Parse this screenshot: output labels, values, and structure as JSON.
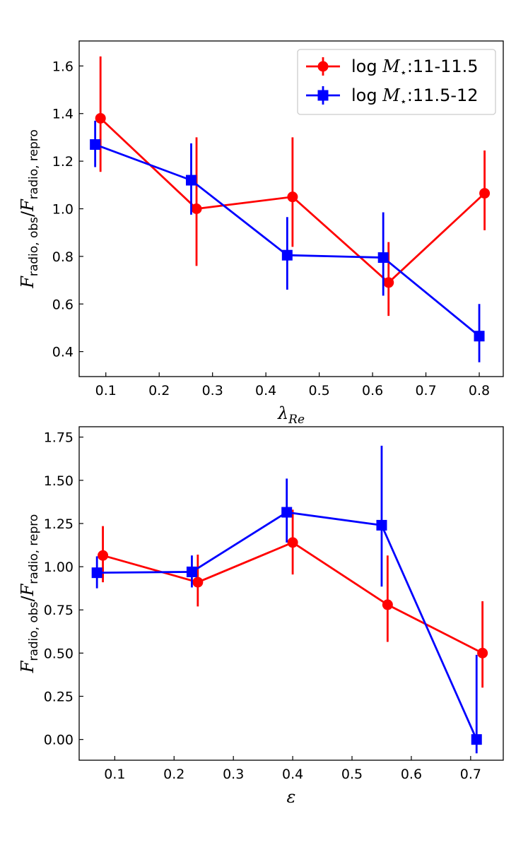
{
  "chart_data": [
    {
      "type": "line",
      "xlabel": "λ_Re",
      "ylabel": "F_radio,obs/F_radio,repro",
      "xlim": [
        0.05,
        0.845
      ],
      "ylim": [
        0.295,
        1.705
      ],
      "xticks": [
        "0.1",
        "0.2",
        "0.3",
        "0.4",
        "0.5",
        "0.6",
        "0.7",
        "0.8"
      ],
      "yticks": [
        "0.4",
        "0.6",
        "0.8",
        "1.0",
        "1.2",
        "1.4",
        "1.6"
      ],
      "grid": false,
      "legend": "top-right",
      "series": [
        {
          "name": "log M⋆:11-11.5",
          "color": "#ff0000",
          "marker": "circle",
          "x": [
            0.09,
            0.27,
            0.45,
            0.63,
            0.81
          ],
          "y": [
            1.38,
            1.0,
            1.05,
            0.69,
            1.065
          ],
          "yerr_low": [
            1.155,
            0.76,
            0.84,
            0.55,
            0.91
          ],
          "yerr_high": [
            1.64,
            1.3,
            1.3,
            0.86,
            1.245
          ]
        },
        {
          "name": "log M⋆:11.5-12",
          "color": "#0000ff",
          "marker": "square",
          "x": [
            0.08,
            0.26,
            0.44,
            0.62,
            0.8
          ],
          "y": [
            1.27,
            1.12,
            0.805,
            0.795,
            0.465
          ],
          "yerr_low": [
            1.175,
            0.975,
            0.66,
            0.635,
            0.355
          ],
          "yerr_high": [
            1.37,
            1.275,
            0.965,
            0.985,
            0.6
          ]
        }
      ]
    },
    {
      "type": "line",
      "xlabel": "ε",
      "ylabel": "F_radio,obs/F_radio,repro",
      "xlim": [
        0.04,
        0.755
      ],
      "ylim": [
        -0.12,
        1.81
      ],
      "xticks": [
        "0.1",
        "0.2",
        "0.3",
        "0.4",
        "0.5",
        "0.6",
        "0.7"
      ],
      "yticks": [
        "0.00",
        "0.25",
        "0.50",
        "0.75",
        "1.00",
        "1.25",
        "1.50",
        "1.75"
      ],
      "grid": false,
      "series": [
        {
          "name": "log M⋆:11-11.5",
          "color": "#ff0000",
          "marker": "circle",
          "x": [
            0.08,
            0.24,
            0.4,
            0.56,
            0.72
          ],
          "y": [
            1.065,
            0.91,
            1.14,
            0.78,
            0.5
          ],
          "yerr_low": [
            0.91,
            0.77,
            0.955,
            0.565,
            0.3
          ],
          "yerr_high": [
            1.235,
            1.07,
            1.33,
            1.065,
            0.8
          ]
        },
        {
          "name": "log M⋆:11.5-12",
          "color": "#0000ff",
          "marker": "square",
          "x": [
            0.07,
            0.23,
            0.39,
            0.55,
            0.71
          ],
          "y": [
            0.965,
            0.97,
            1.315,
            1.24,
            0.0
          ],
          "yerr_low": [
            0.875,
            0.88,
            1.14,
            0.885,
            -0.08
          ],
          "yerr_high": [
            1.06,
            1.065,
            1.51,
            1.7,
            0.49
          ]
        }
      ]
    }
  ]
}
